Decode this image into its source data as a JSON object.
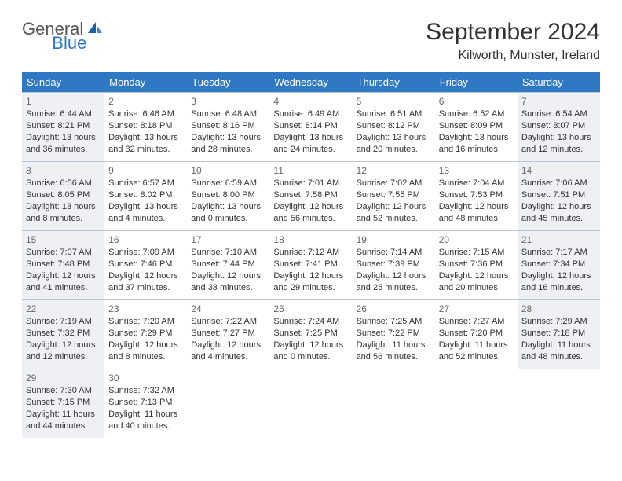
{
  "brand": {
    "part1": "General",
    "part2": "Blue"
  },
  "title": "September 2024",
  "location": "Kilworth, Munster, Ireland",
  "colors": {
    "header_bg": "#2f78c4",
    "header_text": "#ffffff",
    "shaded_bg": "#eef0f3",
    "border": "#b8c5d6",
    "text": "#333333",
    "logo_gray": "#555555",
    "logo_blue": "#2f78c4"
  },
  "layout": {
    "type": "calendar-table",
    "columns": 7,
    "rows": 5,
    "cell_font_size": 11,
    "header_font_size": 13,
    "title_font_size": 30,
    "location_font_size": 16
  },
  "day_headers": [
    "Sunday",
    "Monday",
    "Tuesday",
    "Wednesday",
    "Thursday",
    "Friday",
    "Saturday"
  ],
  "days": [
    {
      "n": "1",
      "shaded": true,
      "sunrise": "Sunrise: 6:44 AM",
      "sunset": "Sunset: 8:21 PM",
      "daylight": "Daylight: 13 hours and 36 minutes."
    },
    {
      "n": "2",
      "shaded": false,
      "sunrise": "Sunrise: 6:46 AM",
      "sunset": "Sunset: 8:18 PM",
      "daylight": "Daylight: 13 hours and 32 minutes."
    },
    {
      "n": "3",
      "shaded": false,
      "sunrise": "Sunrise: 6:48 AM",
      "sunset": "Sunset: 8:16 PM",
      "daylight": "Daylight: 13 hours and 28 minutes."
    },
    {
      "n": "4",
      "shaded": false,
      "sunrise": "Sunrise: 6:49 AM",
      "sunset": "Sunset: 8:14 PM",
      "daylight": "Daylight: 13 hours and 24 minutes."
    },
    {
      "n": "5",
      "shaded": false,
      "sunrise": "Sunrise: 6:51 AM",
      "sunset": "Sunset: 8:12 PM",
      "daylight": "Daylight: 13 hours and 20 minutes."
    },
    {
      "n": "6",
      "shaded": false,
      "sunrise": "Sunrise: 6:52 AM",
      "sunset": "Sunset: 8:09 PM",
      "daylight": "Daylight: 13 hours and 16 minutes."
    },
    {
      "n": "7",
      "shaded": true,
      "sunrise": "Sunrise: 6:54 AM",
      "sunset": "Sunset: 8:07 PM",
      "daylight": "Daylight: 13 hours and 12 minutes."
    },
    {
      "n": "8",
      "shaded": true,
      "sunrise": "Sunrise: 6:56 AM",
      "sunset": "Sunset: 8:05 PM",
      "daylight": "Daylight: 13 hours and 8 minutes."
    },
    {
      "n": "9",
      "shaded": false,
      "sunrise": "Sunrise: 6:57 AM",
      "sunset": "Sunset: 8:02 PM",
      "daylight": "Daylight: 13 hours and 4 minutes."
    },
    {
      "n": "10",
      "shaded": false,
      "sunrise": "Sunrise: 6:59 AM",
      "sunset": "Sunset: 8:00 PM",
      "daylight": "Daylight: 13 hours and 0 minutes."
    },
    {
      "n": "11",
      "shaded": false,
      "sunrise": "Sunrise: 7:01 AM",
      "sunset": "Sunset: 7:58 PM",
      "daylight": "Daylight: 12 hours and 56 minutes."
    },
    {
      "n": "12",
      "shaded": false,
      "sunrise": "Sunrise: 7:02 AM",
      "sunset": "Sunset: 7:55 PM",
      "daylight": "Daylight: 12 hours and 52 minutes."
    },
    {
      "n": "13",
      "shaded": false,
      "sunrise": "Sunrise: 7:04 AM",
      "sunset": "Sunset: 7:53 PM",
      "daylight": "Daylight: 12 hours and 48 minutes."
    },
    {
      "n": "14",
      "shaded": true,
      "sunrise": "Sunrise: 7:06 AM",
      "sunset": "Sunset: 7:51 PM",
      "daylight": "Daylight: 12 hours and 45 minutes."
    },
    {
      "n": "15",
      "shaded": true,
      "sunrise": "Sunrise: 7:07 AM",
      "sunset": "Sunset: 7:48 PM",
      "daylight": "Daylight: 12 hours and 41 minutes."
    },
    {
      "n": "16",
      "shaded": false,
      "sunrise": "Sunrise: 7:09 AM",
      "sunset": "Sunset: 7:46 PM",
      "daylight": "Daylight: 12 hours and 37 minutes."
    },
    {
      "n": "17",
      "shaded": false,
      "sunrise": "Sunrise: 7:10 AM",
      "sunset": "Sunset: 7:44 PM",
      "daylight": "Daylight: 12 hours and 33 minutes."
    },
    {
      "n": "18",
      "shaded": false,
      "sunrise": "Sunrise: 7:12 AM",
      "sunset": "Sunset: 7:41 PM",
      "daylight": "Daylight: 12 hours and 29 minutes."
    },
    {
      "n": "19",
      "shaded": false,
      "sunrise": "Sunrise: 7:14 AM",
      "sunset": "Sunset: 7:39 PM",
      "daylight": "Daylight: 12 hours and 25 minutes."
    },
    {
      "n": "20",
      "shaded": false,
      "sunrise": "Sunrise: 7:15 AM",
      "sunset": "Sunset: 7:36 PM",
      "daylight": "Daylight: 12 hours and 20 minutes."
    },
    {
      "n": "21",
      "shaded": true,
      "sunrise": "Sunrise: 7:17 AM",
      "sunset": "Sunset: 7:34 PM",
      "daylight": "Daylight: 12 hours and 16 minutes."
    },
    {
      "n": "22",
      "shaded": true,
      "sunrise": "Sunrise: 7:19 AM",
      "sunset": "Sunset: 7:32 PM",
      "daylight": "Daylight: 12 hours and 12 minutes."
    },
    {
      "n": "23",
      "shaded": false,
      "sunrise": "Sunrise: 7:20 AM",
      "sunset": "Sunset: 7:29 PM",
      "daylight": "Daylight: 12 hours and 8 minutes."
    },
    {
      "n": "24",
      "shaded": false,
      "sunrise": "Sunrise: 7:22 AM",
      "sunset": "Sunset: 7:27 PM",
      "daylight": "Daylight: 12 hours and 4 minutes."
    },
    {
      "n": "25",
      "shaded": false,
      "sunrise": "Sunrise: 7:24 AM",
      "sunset": "Sunset: 7:25 PM",
      "daylight": "Daylight: 12 hours and 0 minutes."
    },
    {
      "n": "26",
      "shaded": false,
      "sunrise": "Sunrise: 7:25 AM",
      "sunset": "Sunset: 7:22 PM",
      "daylight": "Daylight: 11 hours and 56 minutes."
    },
    {
      "n": "27",
      "shaded": false,
      "sunrise": "Sunrise: 7:27 AM",
      "sunset": "Sunset: 7:20 PM",
      "daylight": "Daylight: 11 hours and 52 minutes."
    },
    {
      "n": "28",
      "shaded": true,
      "sunrise": "Sunrise: 7:29 AM",
      "sunset": "Sunset: 7:18 PM",
      "daylight": "Daylight: 11 hours and 48 minutes."
    },
    {
      "n": "29",
      "shaded": true,
      "sunrise": "Sunrise: 7:30 AM",
      "sunset": "Sunset: 7:15 PM",
      "daylight": "Daylight: 11 hours and 44 minutes."
    },
    {
      "n": "30",
      "shaded": false,
      "sunrise": "Sunrise: 7:32 AM",
      "sunset": "Sunset: 7:13 PM",
      "daylight": "Daylight: 11 hours and 40 minutes."
    }
  ]
}
